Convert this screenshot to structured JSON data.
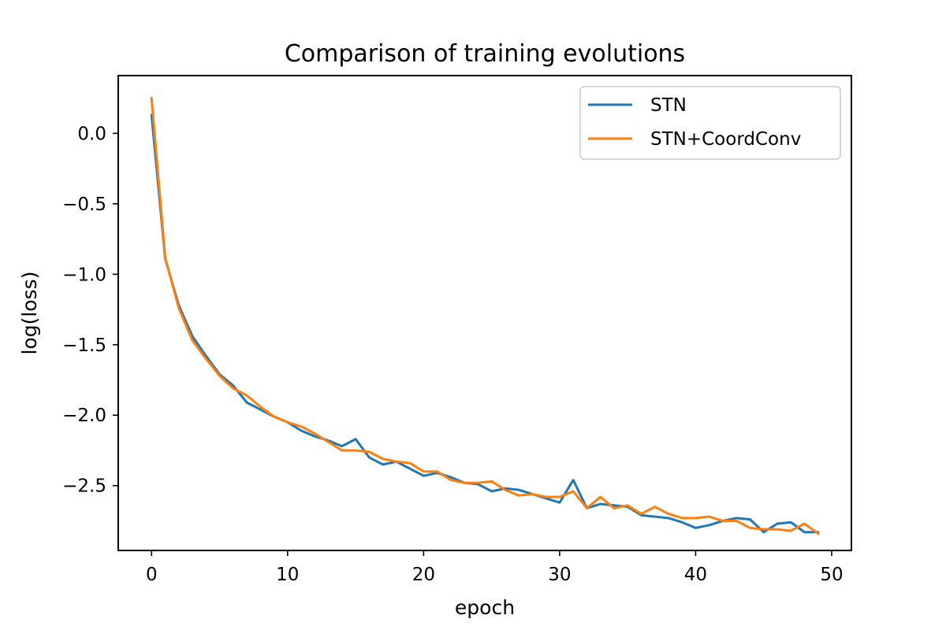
{
  "chart_data": {
    "type": "line",
    "title": "Comparison of training evolutions",
    "xlabel": "epoch",
    "ylabel": "log(loss)",
    "xlim": [
      -2.45,
      51.45
    ],
    "ylim": [
      -2.96,
      0.41
    ],
    "xticks": [
      0,
      10,
      20,
      30,
      40,
      50
    ],
    "yticks": [
      0.0,
      -0.5,
      -1.0,
      -1.5,
      -2.0,
      -2.5
    ],
    "ytick_labels": [
      "0.0",
      "−0.5",
      "−1.0",
      "−1.5",
      "−2.0",
      "−2.5"
    ],
    "grid": false,
    "legend_position": "upper right",
    "x": [
      0,
      1,
      2,
      3,
      4,
      5,
      6,
      7,
      8,
      9,
      10,
      11,
      12,
      13,
      14,
      15,
      16,
      17,
      18,
      19,
      20,
      21,
      22,
      23,
      24,
      25,
      26,
      27,
      28,
      29,
      30,
      31,
      32,
      33,
      34,
      35,
      36,
      37,
      38,
      39,
      40,
      41,
      42,
      43,
      44,
      45,
      46,
      47,
      48,
      49
    ],
    "series": [
      {
        "name": "STN",
        "color": "#1f77b4",
        "values": [
          0.13,
          -0.89,
          -1.22,
          -1.44,
          -1.58,
          -1.71,
          -1.79,
          -1.91,
          -1.96,
          -2.01,
          -2.05,
          -2.11,
          -2.15,
          -2.18,
          -2.22,
          -2.17,
          -2.3,
          -2.35,
          -2.33,
          -2.38,
          -2.43,
          -2.41,
          -2.44,
          -2.48,
          -2.49,
          -2.54,
          -2.52,
          -2.53,
          -2.56,
          -2.59,
          -2.62,
          -2.46,
          -2.66,
          -2.63,
          -2.64,
          -2.65,
          -2.71,
          -2.72,
          -2.73,
          -2.76,
          -2.8,
          -2.78,
          -2.75,
          -2.73,
          -2.74,
          -2.83,
          -2.77,
          -2.76,
          -2.83,
          -2.83
        ]
      },
      {
        "name": "STN+CoordConv",
        "color": "#ff7f0e",
        "values": [
          0.25,
          -0.88,
          -1.24,
          -1.47,
          -1.6,
          -1.72,
          -1.81,
          -1.86,
          -1.94,
          -2.01,
          -2.05,
          -2.08,
          -2.13,
          -2.19,
          -2.25,
          -2.25,
          -2.26,
          -2.31,
          -2.33,
          -2.34,
          -2.4,
          -2.4,
          -2.46,
          -2.48,
          -2.48,
          -2.47,
          -2.53,
          -2.57,
          -2.56,
          -2.58,
          -2.58,
          -2.54,
          -2.66,
          -2.58,
          -2.66,
          -2.64,
          -2.7,
          -2.65,
          -2.7,
          -2.73,
          -2.73,
          -2.72,
          -2.75,
          -2.75,
          -2.8,
          -2.81,
          -2.81,
          -2.82,
          -2.77,
          -2.84
        ]
      }
    ]
  }
}
